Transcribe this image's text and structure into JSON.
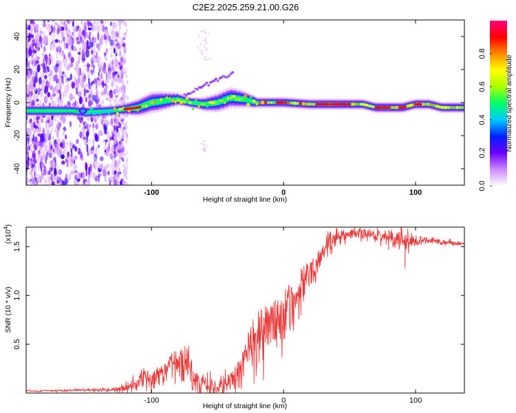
{
  "chart_data": [
    {
      "type": "heatmap",
      "title": "C2E2.2025.259.21.00.G26",
      "xlabel": "Height of straight line (km)",
      "ylabel": "Frequency (Hz)",
      "xlim": [
        -195,
        137
      ],
      "ylim": [
        -50,
        50
      ],
      "x_ticks": [
        -100,
        0,
        100
      ],
      "x_tick_labels": [
        "-100",
        "0",
        "100"
      ],
      "y_ticks": [
        -40,
        -20,
        0,
        20,
        40
      ],
      "y_tick_labels": [
        "-40",
        "-20",
        "0",
        "20",
        "40"
      ],
      "colorbar": {
        "label": "Normalized spectral amplitude",
        "range": [
          0,
          1
        ],
        "ticks": [
          0.0,
          0.2,
          0.4,
          0.6,
          0.8
        ],
        "tick_labels": [
          "0.0",
          "0.2",
          "0.4",
          "0.6",
          "0.8"
        ],
        "colors": [
          "#ffffff",
          "#cc88ff",
          "#6a00ff",
          "#0020ff",
          "#00ccff",
          "#00ff66",
          "#aaff00",
          "#ffff00",
          "#ff8800",
          "#ff0000",
          "#ff0080"
        ]
      },
      "ridge": {
        "x": [
          -195,
          -160,
          -150,
          -130,
          -120,
          -110,
          -100,
          -90,
          -80,
          -70,
          -60,
          -50,
          -40,
          -30,
          -20,
          0,
          20,
          40,
          60,
          70,
          80,
          90,
          100,
          110,
          120,
          137
        ],
        "y": [
          -5,
          -5,
          -6,
          -5,
          -4,
          -3,
          0,
          1,
          2,
          0,
          -1,
          0,
          3,
          2,
          0,
          0,
          -1,
          -1,
          -1,
          -3,
          -3,
          -3,
          -1,
          -1,
          -3,
          -3
        ]
      },
      "branch": {
        "x": [
          -75,
          -65,
          -55,
          -45,
          -38
        ],
        "y": [
          5,
          8,
          12,
          16,
          18
        ]
      }
    },
    {
      "type": "line",
      "title": "",
      "xlabel": "Height of straight line (km)",
      "ylabel": "SNR (10 * v/v)",
      "y_scale_label": "(x10",
      "y_scale_exp": "4",
      "y_scale_close": ")",
      "xlim": [
        -195,
        137
      ],
      "ylim": [
        0,
        1.7
      ],
      "x_ticks": [
        -100,
        0,
        100
      ],
      "x_tick_labels": [
        "-100",
        "0",
        "100"
      ],
      "y_ticks": [
        0.5,
        1.0,
        1.5
      ],
      "y_tick_labels": [
        "0.5",
        "1.0",
        "1.5"
      ],
      "color": "#e83838",
      "envelope": {
        "x": [
          -195,
          -150,
          -130,
          -120,
          -110,
          -100,
          -90,
          -80,
          -75,
          -70,
          -65,
          -60,
          -55,
          -50,
          -45,
          -40,
          -35,
          -30,
          -20,
          -10,
          0,
          10,
          20,
          30,
          40,
          50,
          60,
          70,
          80,
          90,
          95,
          100,
          110,
          120,
          137
        ],
        "y": [
          0.02,
          0.03,
          0.03,
          0.05,
          0.1,
          0.2,
          0.3,
          0.45,
          0.5,
          0.35,
          0.2,
          0.15,
          0.05,
          0.03,
          0.12,
          0.2,
          0.3,
          0.45,
          0.8,
          0.9,
          1.0,
          1.15,
          1.35,
          1.5,
          1.6,
          1.62,
          1.63,
          1.62,
          1.6,
          1.58,
          1.55,
          1.55,
          1.56,
          1.55,
          1.53
        ]
      },
      "noise": {
        "x": [
          -195,
          -130,
          -110,
          -90,
          -75,
          -60,
          -50,
          -40,
          -30,
          -20,
          -10,
          0,
          10,
          20,
          30,
          40,
          60,
          80,
          90,
          95,
          110,
          137
        ],
        "amp": [
          0.005,
          0.01,
          0.05,
          0.18,
          0.35,
          0.12,
          0.02,
          0.15,
          0.3,
          0.5,
          0.5,
          0.45,
          0.35,
          0.25,
          0.12,
          0.04,
          0.03,
          0.04,
          0.06,
          0.04,
          0.02,
          0.01
        ]
      },
      "spikes": [
        {
          "x": -143,
          "y": 0.05
        },
        {
          "x": 89,
          "y": 1.72
        },
        {
          "x": 92,
          "y": 1.28
        },
        {
          "x": 94,
          "y": 1.68
        }
      ]
    }
  ]
}
